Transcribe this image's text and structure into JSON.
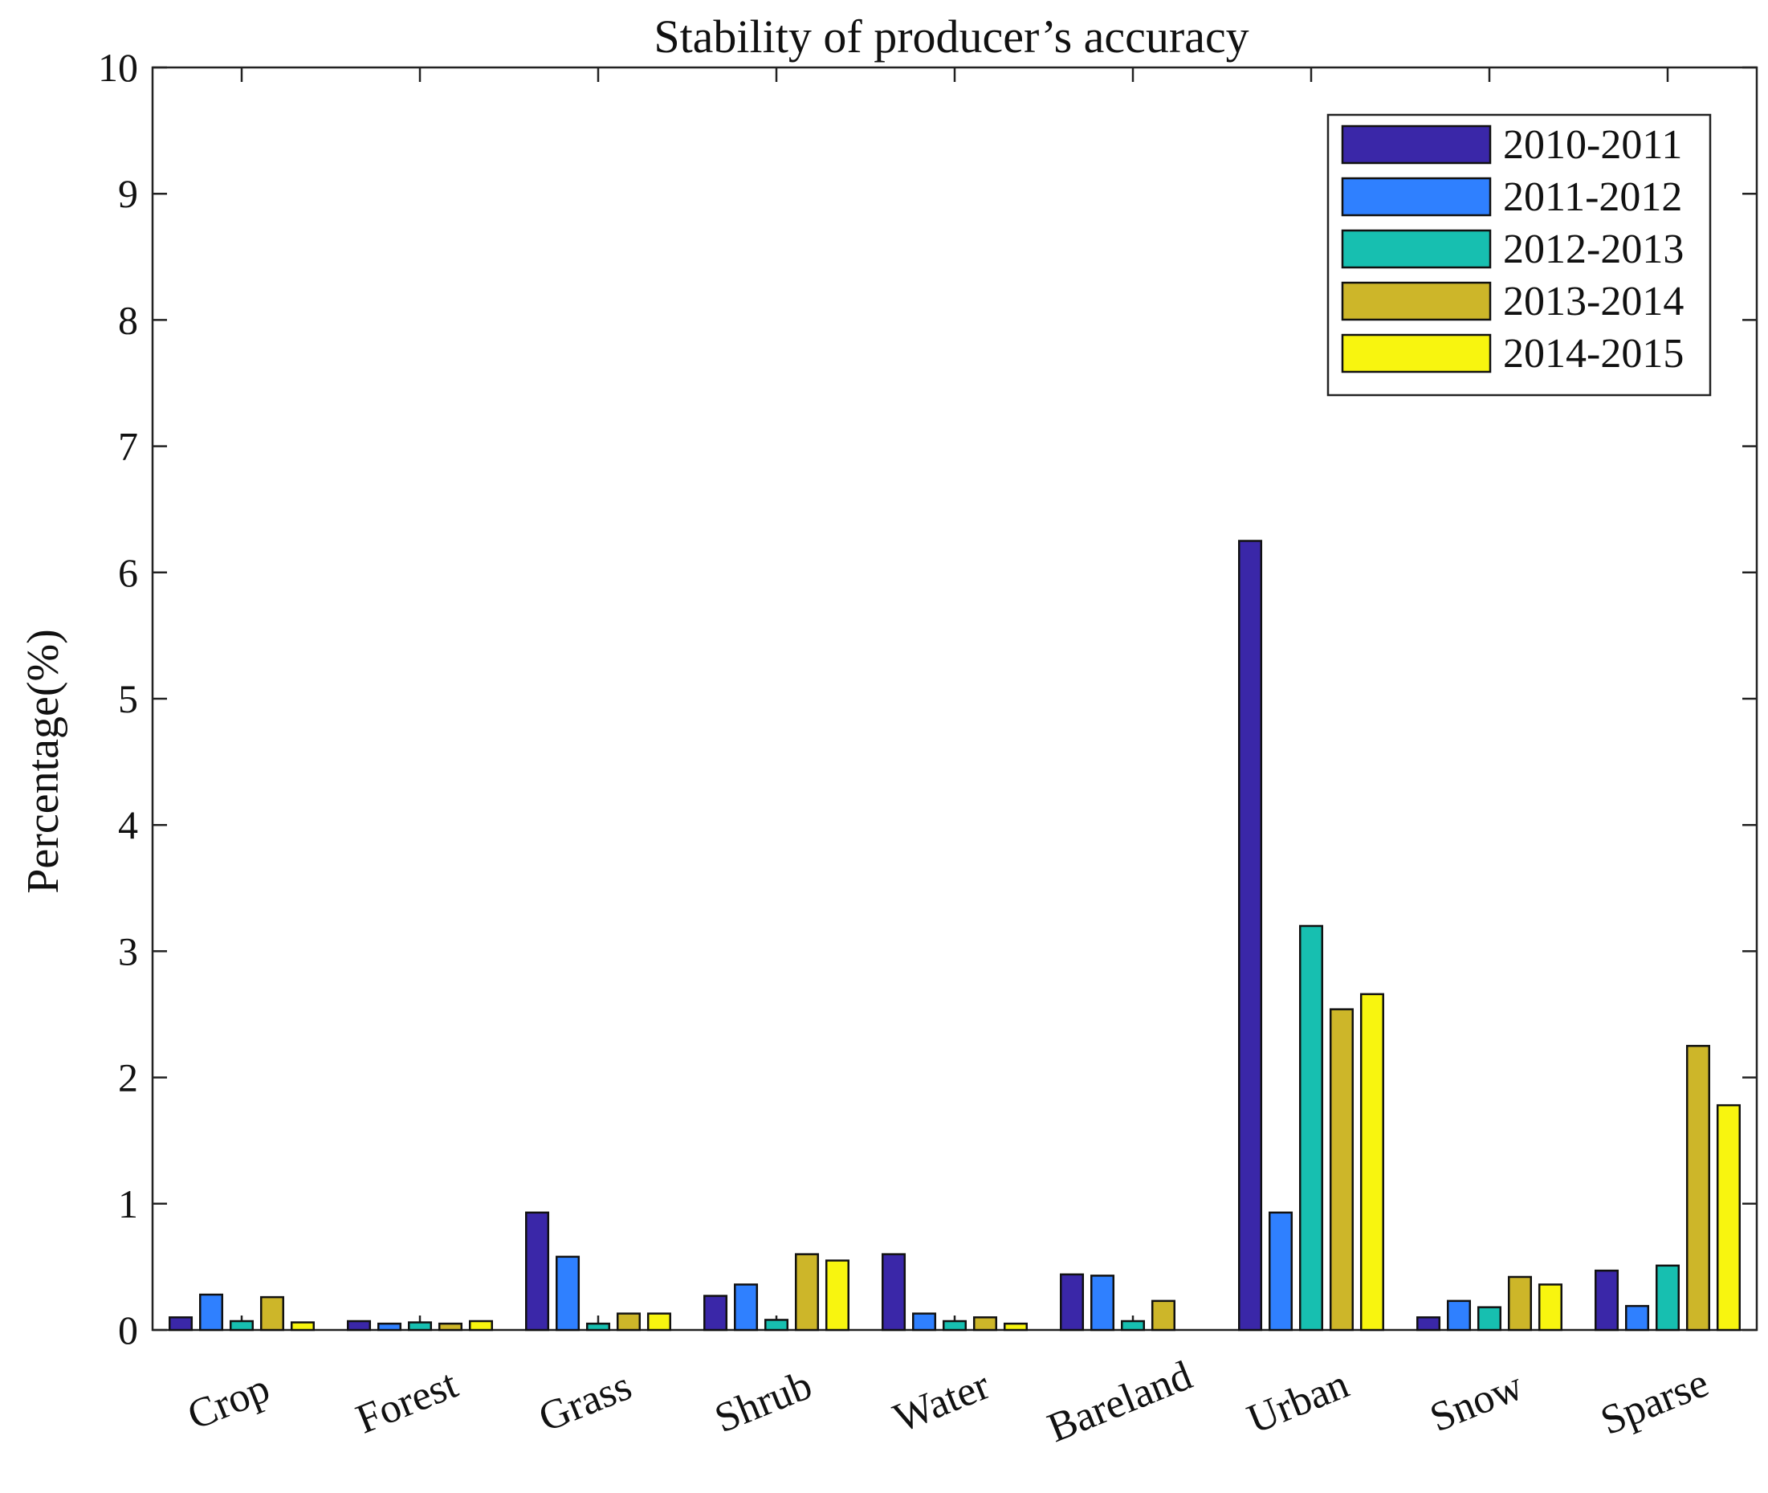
{
  "chart_data": {
    "type": "bar",
    "title": "Stability of producer’s accuracy",
    "xlabel": "",
    "ylabel": "Percentage(%)",
    "ylim": [
      0,
      10
    ],
    "yticks": [
      "0",
      "1",
      "2",
      "3",
      "4",
      "5",
      "6",
      "7",
      "8",
      "9",
      "10"
    ],
    "grid": false,
    "legend_position": "top-right",
    "categories": [
      "Crop",
      "Forest",
      "Grass",
      "Shrub",
      "Water",
      "Bareland",
      "Urban",
      "Snow",
      "Sparse"
    ],
    "series": [
      {
        "name": "2010-2011",
        "color": "#3a27a8",
        "values": [
          0.1,
          0.07,
          0.93,
          0.27,
          0.6,
          0.44,
          6.25,
          0.1,
          0.47
        ]
      },
      {
        "name": "2011-2012",
        "color": "#2f80ff",
        "values": [
          0.28,
          0.05,
          0.58,
          0.36,
          0.13,
          0.43,
          0.93,
          0.23,
          0.19
        ]
      },
      {
        "name": "2012-2013",
        "color": "#17bfb0",
        "values": [
          0.07,
          0.06,
          0.05,
          0.08,
          0.07,
          0.07,
          3.2,
          0.18,
          0.51
        ]
      },
      {
        "name": "2013-2014",
        "color": "#cdb629",
        "values": [
          0.26,
          0.05,
          0.13,
          0.6,
          0.1,
          0.23,
          2.54,
          0.42,
          2.25
        ]
      },
      {
        "name": "2014-2015",
        "color": "#f8f50f",
        "values": [
          0.06,
          0.07,
          0.13,
          0.55,
          0.05,
          0.0,
          2.66,
          0.36,
          1.78
        ]
      }
    ]
  }
}
